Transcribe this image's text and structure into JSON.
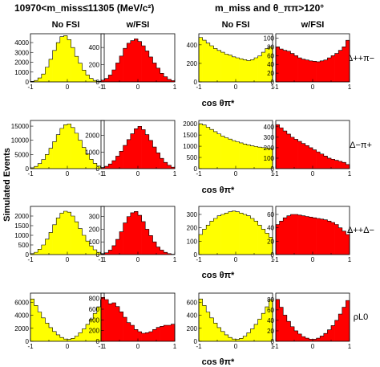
{
  "header": {
    "left": "10970<m_miss≤11305 (MeV/c²)",
    "right": "m_miss and θ_ππ>120°"
  },
  "column_titles": [
    "No FSI",
    "w/FSI",
    "No FSI",
    "w/FSI"
  ],
  "y_axis_label": "Simulated Events",
  "x_axis_label": "cos θπ*",
  "row_labels": [
    "Δ++π−",
    "Δ−π+",
    "Δ++Δ−",
    "ρL0"
  ],
  "colors": {
    "no_fsi": "#ffff00",
    "w_fsi": "#ff0000",
    "axis": "#000000"
  },
  "chart_data": [
    {
      "type": "bar",
      "row": 0,
      "col": 0,
      "series": "No FSI",
      "xlim": [
        -1,
        1
      ],
      "yticks": [
        0,
        1000,
        2000,
        3000,
        4000
      ],
      "ylim": [
        0,
        4900
      ],
      "values": [
        60,
        150,
        400,
        800,
        1500,
        2300,
        3200,
        4000,
        4600,
        4700,
        4300,
        3500,
        2600,
        1900,
        1200,
        700,
        350,
        150,
        70,
        30
      ]
    },
    {
      "type": "bar",
      "row": 0,
      "col": 1,
      "series": "w/FSI",
      "xlim": [
        -1,
        1
      ],
      "yticks": [
        0,
        200,
        400
      ],
      "ylim": [
        0,
        560
      ],
      "values": [
        20,
        40,
        80,
        140,
        220,
        300,
        390,
        450,
        480,
        500,
        470,
        420,
        360,
        290,
        220,
        160,
        100,
        60,
        30,
        15
      ]
    },
    {
      "type": "bar",
      "row": 0,
      "col": 2,
      "series": "No FSI",
      "xlim": [
        -1,
        1
      ],
      "yticks": [
        0,
        200,
        400
      ],
      "ylim": [
        0,
        520
      ],
      "values": [
        480,
        450,
        420,
        390,
        360,
        340,
        320,
        300,
        290,
        270,
        260,
        250,
        240,
        230,
        240,
        260,
        280,
        320,
        360,
        380
      ]
    },
    {
      "type": "bar",
      "row": 0,
      "col": 3,
      "series": "w/FSI",
      "xlim": [
        -1,
        1
      ],
      "yticks": [
        0,
        20,
        40,
        60,
        80,
        100
      ],
      "ylim": [
        0,
        110
      ],
      "values": [
        80,
        75,
        72,
        70,
        65,
        60,
        55,
        52,
        50,
        48,
        47,
        46,
        48,
        50,
        55,
        60,
        65,
        72,
        80,
        95
      ]
    },
    {
      "type": "bar",
      "row": 1,
      "col": 0,
      "series": "No FSI",
      "xlim": [
        -1,
        1
      ],
      "yticks": [
        0,
        5000,
        10000,
        15000
      ],
      "ylim": [
        0,
        17000
      ],
      "values": [
        300,
        800,
        1800,
        3200,
        5000,
        7200,
        9500,
        12000,
        14200,
        15500,
        15800,
        14500,
        12500,
        10000,
        7500,
        5200,
        3300,
        1900,
        900,
        400
      ]
    },
    {
      "type": "bar",
      "row": 1,
      "col": 1,
      "series": "w/FSI",
      "xlim": [
        -1,
        1
      ],
      "yticks": [
        0,
        1000,
        2000
      ],
      "ylim": [
        0,
        2900
      ],
      "values": [
        60,
        140,
        280,
        480,
        750,
        1050,
        1400,
        1750,
        2100,
        2400,
        2550,
        2350,
        2050,
        1700,
        1300,
        950,
        620,
        380,
        200,
        90
      ]
    },
    {
      "type": "bar",
      "row": 1,
      "col": 2,
      "series": "No FSI",
      "xlim": [
        -1,
        1
      ],
      "yticks": [
        0,
        500,
        1000,
        1500,
        2000
      ],
      "ylim": [
        0,
        2150
      ],
      "values": [
        2000,
        1950,
        1850,
        1750,
        1650,
        1550,
        1450,
        1380,
        1320,
        1250,
        1200,
        1150,
        1100,
        1060,
        1020,
        990,
        960,
        940,
        920,
        900
      ]
    },
    {
      "type": "bar",
      "row": 1,
      "col": 3,
      "series": "w/FSI",
      "xlim": [
        -1,
        1
      ],
      "yticks": [
        0,
        100,
        200,
        300,
        400
      ],
      "ylim": [
        0,
        460
      ],
      "values": [
        420,
        390,
        360,
        330,
        300,
        280,
        260,
        240,
        220,
        200,
        180,
        160,
        140,
        120,
        100,
        90,
        80,
        70,
        60,
        40
      ]
    },
    {
      "type": "bar",
      "row": 2,
      "col": 0,
      "series": "No FSI",
      "xlim": [
        -1,
        1
      ],
      "yticks": [
        0,
        500,
        1000,
        1500,
        2000
      ],
      "ylim": [
        0,
        2500
      ],
      "values": [
        50,
        120,
        280,
        500,
        800,
        1150,
        1550,
        1900,
        2150,
        2250,
        2200,
        2000,
        1700,
        1350,
        1000,
        700,
        450,
        250,
        120,
        50
      ]
    },
    {
      "type": "bar",
      "row": 2,
      "col": 1,
      "series": "w/FSI",
      "xlim": [
        -1,
        1
      ],
      "yticks": [
        0,
        100,
        200,
        300
      ],
      "ylim": [
        0,
        380
      ],
      "values": [
        5,
        15,
        35,
        70,
        120,
        180,
        250,
        300,
        330,
        340,
        310,
        260,
        200,
        150,
        100,
        60,
        35,
        18,
        8,
        3
      ]
    },
    {
      "type": "bar",
      "row": 2,
      "col": 2,
      "series": "No FSI",
      "xlim": [
        -1,
        1
      ],
      "yticks": [
        0,
        100,
        200,
        300
      ],
      "ylim": [
        0,
        360
      ],
      "values": [
        150,
        190,
        220,
        250,
        270,
        290,
        300,
        310,
        320,
        325,
        320,
        310,
        300,
        290,
        270,
        250,
        220,
        190,
        160,
        130
      ]
    },
    {
      "type": "bar",
      "row": 2,
      "col": 3,
      "series": "w/FSI",
      "xlim": [
        -1,
        1
      ],
      "yticks": [
        0,
        20,
        40,
        60
      ],
      "ylim": [
        0,
        72
      ],
      "values": [
        45,
        50,
        55,
        58,
        60,
        60,
        59,
        58,
        57,
        56,
        55,
        54,
        53,
        52,
        50,
        48,
        45,
        40,
        35,
        30
      ]
    },
    {
      "type": "bar",
      "row": 3,
      "col": 0,
      "series": "No FSI",
      "xlim": [
        -1,
        1
      ],
      "yticks": [
        0,
        2000,
        4000,
        6000
      ],
      "ylim": [
        0,
        7400
      ],
      "values": [
        6500,
        5500,
        4500,
        3600,
        2800,
        2100,
        1500,
        1000,
        600,
        350,
        300,
        450,
        800,
        1300,
        1900,
        2600,
        3400,
        4300,
        5300,
        6400
      ]
    },
    {
      "type": "bar",
      "row": 3,
      "col": 1,
      "series": "w/FSI",
      "xlim": [
        -1,
        1
      ],
      "yticks": [
        0,
        200,
        400,
        600,
        800
      ],
      "ylim": [
        0,
        900
      ],
      "values": [
        820,
        780,
        700,
        720,
        650,
        550,
        450,
        350,
        300,
        220,
        180,
        150,
        160,
        180,
        220,
        260,
        280,
        300,
        300,
        320
      ]
    },
    {
      "type": "bar",
      "row": 3,
      "col": 2,
      "series": "No FSI",
      "xlim": [
        -1,
        1
      ],
      "yticks": [
        0,
        200,
        400,
        600
      ],
      "ylim": [
        0,
        740
      ],
      "values": [
        650,
        550,
        450,
        360,
        280,
        210,
        150,
        100,
        60,
        35,
        30,
        45,
        80,
        130,
        190,
        260,
        340,
        430,
        530,
        640
      ]
    },
    {
      "type": "bar",
      "row": 3,
      "col": 3,
      "series": "w/FSI",
      "xlim": [
        -1,
        1
      ],
      "yticks": [
        0,
        20,
        40,
        60,
        80
      ],
      "ylim": [
        0,
        92
      ],
      "values": [
        80,
        65,
        50,
        38,
        28,
        20,
        14,
        9,
        6,
        4,
        4,
        6,
        10,
        15,
        22,
        30,
        40,
        52,
        65,
        78
      ]
    }
  ]
}
